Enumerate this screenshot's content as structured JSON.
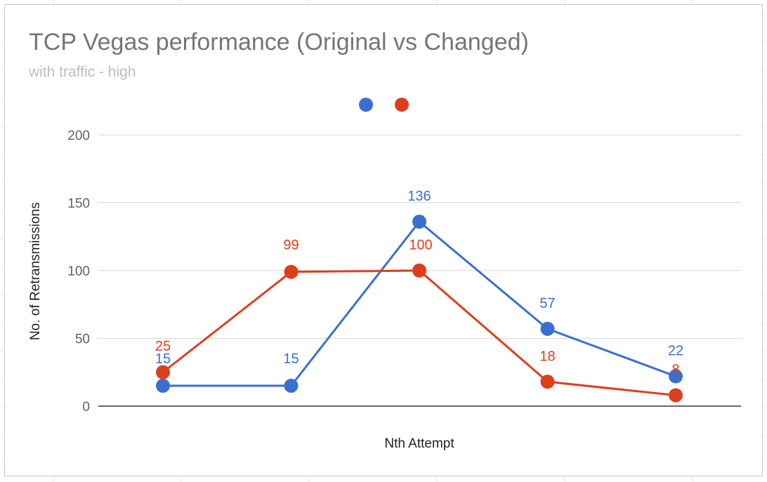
{
  "chart_data": {
    "type": "line",
    "title": "TCP Vegas performance (Original vs Changed)",
    "subtitle": "with traffic - high",
    "xlabel": "Nth Attempt",
    "ylabel": "No. of Retransmissions",
    "ylim": [
      0,
      200
    ],
    "yticks": [
      "0",
      "50",
      "100",
      "150",
      "200"
    ],
    "x": [
      1,
      2,
      3,
      4,
      5
    ],
    "grid": true,
    "legend": "top-center",
    "series": [
      {
        "color": "#3a6fd0",
        "values": [
          15,
          15,
          136,
          57,
          22
        ]
      },
      {
        "color": "#dc3f1e",
        "values": [
          25,
          99,
          100,
          18,
          8
        ]
      }
    ]
  }
}
